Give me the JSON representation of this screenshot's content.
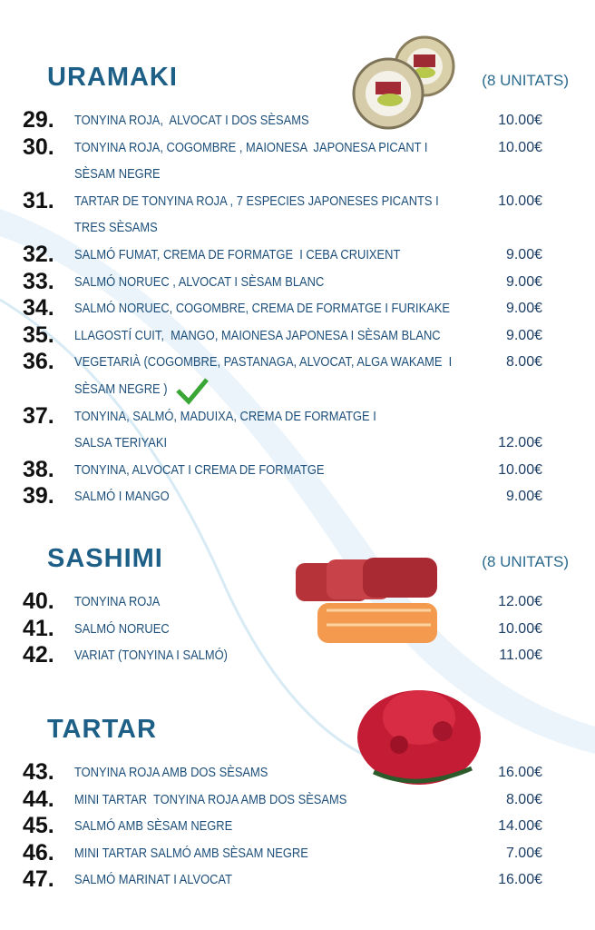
{
  "sections": [
    {
      "title": "URAMAKI",
      "units": "(8 UNITATS)",
      "items": [
        {
          "number": "29.",
          "lines": [
            "TONYINA ROJA,  ALVOCAT I DOS SÈSAMS"
          ],
          "price": "10.00€"
        },
        {
          "number": "30.",
          "lines": [
            "TONYINA ROJA, COGOMBRE , MAIONESA  JAPONESA PICANT I",
            "SÈSAM NEGRE"
          ],
          "price": "10.00€"
        },
        {
          "number": "31.",
          "lines": [
            "TARTAR DE TONYINA ROJA , 7 ESPECIES JAPONESES PICANTS I",
            "TRES SÈSAMS"
          ],
          "price": "10.00€"
        },
        {
          "number": "32.",
          "lines": [
            "SALMÓ FUMAT, CREMA DE FORMATGE  I CEBA CRUIXENT"
          ],
          "price": "9.00€"
        },
        {
          "number": "33.",
          "lines": [
            "SALMÓ NORUEC , ALVOCAT I SÈSAM BLANC"
          ],
          "price": "9.00€"
        },
        {
          "number": "34.",
          "lines": [
            "SALMÓ NORUEC, COGOMBRE, CREMA DE FORMATGE I FURIKAKE"
          ],
          "price": "9.00€"
        },
        {
          "number": "35.",
          "lines": [
            "LLAGOSTÍ CUIT,  MANGO, MAIONESA JAPONESA I SÈSAM BLANC"
          ],
          "price": "9.00€"
        },
        {
          "number": "36.",
          "lines": [
            "VEGETARIÀ (COGOMBRE, PASTANAGA, ALVOCAT, ALGA WAKAME  I",
            "SÈSAM NEGRE )"
          ],
          "price": "8.00€"
        },
        {
          "number": "37.",
          "lines": [
            "TONYINA, SALMÓ, MADUIXA, CREMA DE FORMATGE I",
            "SALSA TERIYAKI"
          ],
          "price": "12.00€"
        },
        {
          "number": "38.",
          "lines": [
            "TONYINA, ALVOCAT I CREMA DE FORMATGE"
          ],
          "price": "10.00€"
        },
        {
          "number": "39.",
          "lines": [
            "SALMÓ I MANGO"
          ],
          "price": "9.00€"
        }
      ]
    },
    {
      "title": "SASHIMI",
      "units": "(8 UNITATS)",
      "items": [
        {
          "number": "40.",
          "lines": [
            "TONYINA ROJA"
          ],
          "price": "12.00€"
        },
        {
          "number": "41.",
          "lines": [
            "SALMÓ NORUEC"
          ],
          "price": "10.00€"
        },
        {
          "number": "42.",
          "lines": [
            "VARIAT (TONYINA I SALMÓ)"
          ],
          "price": "11.00€"
        }
      ]
    },
    {
      "title": "TARTAR",
      "items": [
        {
          "number": "43.",
          "lines": [
            "TONYINA ROJA AMB DOS SÈSAMS"
          ],
          "price": "16.00€"
        },
        {
          "number": "44.",
          "lines": [
            "MINI TARTAR  TONYINA ROJA AMB DOS SÈSAMS"
          ],
          "price": "8.00€"
        },
        {
          "number": "45.",
          "lines": [
            "SALMÓ AMB SÈSAM NEGRE"
          ],
          "price": "14.00€"
        },
        {
          "number": "46.",
          "lines": [
            "MINI TARTAR SALMÓ AMB SÈSAM NEGRE"
          ],
          "price": "7.00€"
        },
        {
          "number": "47.",
          "lines": [
            "SALMÓ MARINAT I ALVOCAT"
          ],
          "price": "16.00€"
        }
      ]
    }
  ]
}
